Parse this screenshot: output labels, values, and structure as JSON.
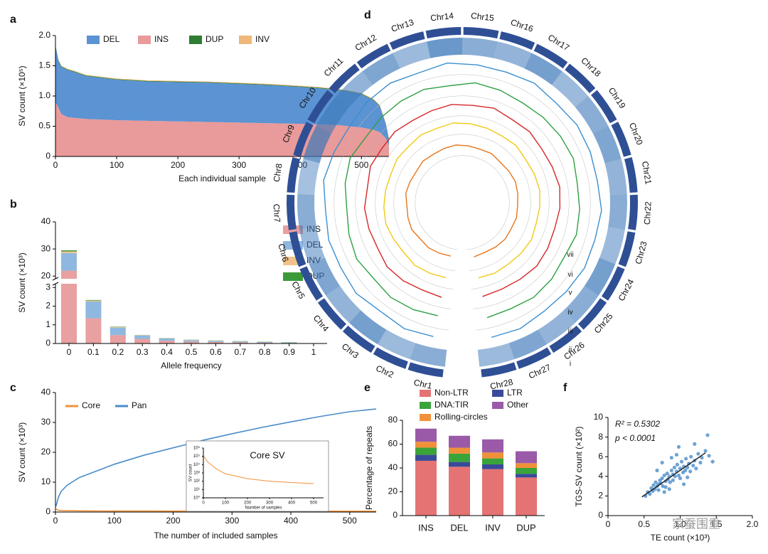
{
  "chart_data": [
    {
      "type": "area",
      "panel_label": "a",
      "y_label": "SV count (×10⁵)",
      "x_label": "Each individual sample",
      "x": [
        0,
        5,
        10,
        20,
        30,
        50,
        100,
        150,
        200,
        250,
        300,
        350,
        400,
        430,
        460,
        480,
        500,
        520,
        530,
        540,
        545
      ],
      "series": [
        {
          "name": "DEL",
          "color": "#5b93d3",
          "values": [
            0.93,
            0.78,
            0.78,
            0.78,
            0.76,
            0.71,
            0.67,
            0.65,
            0.65,
            0.65,
            0.64,
            0.63,
            0.61,
            0.6,
            0.58,
            0.57,
            0.55,
            0.49,
            0.43,
            0.23,
            0.11
          ]
        },
        {
          "name": "INS",
          "color": "#e99a9a",
          "values": [
            0.9,
            0.8,
            0.7,
            0.65,
            0.64,
            0.62,
            0.6,
            0.59,
            0.58,
            0.57,
            0.56,
            0.55,
            0.54,
            0.53,
            0.52,
            0.5,
            0.48,
            0.44,
            0.4,
            0.3,
            0.17
          ]
        },
        {
          "name": "DUP",
          "color": "#2e7d32",
          "values": [
            0.01,
            0.01,
            0.01,
            0.01,
            0.01,
            0.01,
            0.01,
            0.01,
            0.01,
            0.01,
            0.01,
            0.01,
            0.01,
            0.01,
            0.01,
            0.01,
            0.01,
            0.01,
            0.01,
            0.01,
            0.01
          ]
        },
        {
          "name": "INV",
          "color": "#f0b878",
          "values": [
            0.01,
            0.01,
            0.01,
            0.01,
            0.01,
            0.01,
            0.01,
            0.01,
            0.01,
            0.01,
            0.01,
            0.01,
            0.01,
            0.01,
            0.01,
            0.01,
            0.01,
            0.01,
            0.01,
            0.01,
            0.01
          ]
        }
      ],
      "stack_order": [
        1,
        0,
        2,
        3
      ],
      "xlim": [
        0,
        545
      ],
      "ylim": [
        0,
        2
      ],
      "xticks": [
        0,
        100,
        200,
        300,
        400,
        500
      ],
      "yticks": [
        0,
        0.5,
        {
          "value": 1,
          "label": "1.0"
        },
        1.5,
        {
          "value": 2,
          "label": "2.0"
        }
      ]
    },
    {
      "type": "bar",
      "panel_label": "b",
      "y_label": "SV count (×10³)",
      "x_label": "Allele frequency",
      "categories": [
        "0",
        "0.1",
        "0.2",
        "0.3",
        "0.4",
        "0.5",
        "0.6",
        "0.7",
        "0.8",
        "0.9",
        "1"
      ],
      "series": [
        {
          "name": "INS",
          "color": "#e8a0a0",
          "values": [
            22,
            1.35,
            0.45,
            0.25,
            0.15,
            0.1,
            0.08,
            0.06,
            0.04,
            0.02,
            0.01
          ]
        },
        {
          "name": "DEL",
          "color": "#8fb8e0",
          "values": [
            6.5,
            0.9,
            0.4,
            0.18,
            0.12,
            0.08,
            0.06,
            0.05,
            0.04,
            0.03,
            0.01
          ]
        },
        {
          "name": "INV",
          "color": "#f3c28a",
          "values": [
            0.6,
            0.05,
            0.03,
            0.02,
            0.01,
            0.01,
            0.01,
            0.01,
            0.01,
            0.01,
            0
          ]
        },
        {
          "name": "DUP",
          "color": "#3a9a3a",
          "values": [
            0.4,
            0.03,
            0.02,
            0.01,
            0.01,
            0.01,
            0.01,
            0.01,
            0.01,
            0.01,
            0
          ]
        }
      ],
      "ylim": [
        0,
        40
      ],
      "axis_break": [
        3.2,
        19
      ],
      "yticks": [
        0,
        1,
        2,
        3,
        20,
        30,
        40
      ]
    },
    {
      "type": "line",
      "panel_label": "c",
      "y_label": "SV count (×10³)",
      "x_label": "The number of included samples",
      "x": [
        1,
        5,
        10,
        20,
        40,
        60,
        80,
        100,
        150,
        200,
        250,
        300,
        350,
        400,
        450,
        500,
        545
      ],
      "series": [
        {
          "name": "Core",
          "color": "#f0913a",
          "values": [
            1,
            0.6,
            0.5,
            0.45,
            0.4,
            0.38,
            0.36,
            0.35,
            0.33,
            0.32,
            0.31,
            0.3,
            0.3,
            0.29,
            0.29,
            0.28,
            0.28
          ]
        },
        {
          "name": "Pan",
          "color": "#4a8cc9",
          "values": [
            2,
            5,
            7,
            9,
            11.5,
            13,
            14.5,
            16,
            19,
            21.5,
            24,
            26.2,
            28.3,
            30.2,
            32,
            33.6,
            34.5
          ]
        }
      ],
      "xlim": [
        0,
        545
      ],
      "ylim": [
        0,
        40
      ],
      "xticks": [
        0,
        100,
        200,
        300,
        400,
        500
      ],
      "yticks": [
        0,
        10,
        20,
        30,
        40
      ],
      "inset": {
        "title": "Core SV",
        "y_label": "SV count",
        "x_label": "Number of samples",
        "color": "#f0913a",
        "log_y": true,
        "x": [
          1,
          10,
          20,
          40,
          60,
          80,
          100,
          150,
          200,
          300,
          400,
          500
        ],
        "values": [
          100000,
          50000,
          20000,
          8000,
          3000,
          1500,
          800,
          400,
          200,
          100,
          70,
          50
        ],
        "xlim": [
          0,
          545
        ],
        "ylim": [
          1,
          1000000
        ],
        "xticks": [
          0,
          100,
          200,
          300,
          400,
          500
        ],
        "yticks": [
          {
            "value": 1,
            "label": "10⁰"
          },
          {
            "value": 10,
            "label": "10¹"
          },
          {
            "value": 100,
            "label": "10²"
          },
          {
            "value": 1000,
            "label": "10³"
          },
          {
            "value": 10000,
            "label": "10⁴"
          },
          {
            "value": 100000,
            "label": "10⁵"
          },
          {
            "value": 1000000,
            "label": "10⁶"
          }
        ]
      }
    },
    {
      "type": "circos",
      "panel_label": "d",
      "chromosomes": [
        "Chr1",
        "Chr2",
        "Chr3",
        "Chr4",
        "Chr5",
        "Chr6",
        "Chr7",
        "Chr8",
        "Chr9",
        "Chr10",
        "Chr11",
        "Chr12",
        "Chr13",
        "Chr14",
        "Chr15",
        "Chr16",
        "Chr17",
        "Chr18",
        "Chr19",
        "Chr20",
        "Chr21",
        "Chr22",
        "Chr23",
        "Chr24",
        "Chr25",
        "Chr26",
        "Chr27",
        "Chr28"
      ],
      "tracks": [
        {
          "label": "i",
          "color": "#2f4f95"
        },
        {
          "label": "ii",
          "color": "#3a76b8",
          "values": [
            0.6,
            0.5,
            0.7,
            0.55,
            0.65,
            0.5,
            0.6,
            0.45,
            0.7,
            0.6,
            0.55,
            0.65,
            0.5,
            0.75,
            0.6,
            0.55,
            0.7,
            0.5,
            0.6,
            0.65,
            0.55,
            0.6,
            0.5,
            0.7,
            0.6,
            0.55,
            0.65,
            0.5
          ]
        },
        {
          "label": "iii",
          "color": "#3b8fcf",
          "values": [
            0.5,
            0.6,
            0.45,
            0.65,
            0.55,
            0.6,
            0.5,
            0.7,
            0.55,
            0.45,
            0.6,
            0.65,
            0.5,
            0.7,
            0.6,
            0.55,
            0.65,
            0.5,
            0.6,
            0.55,
            0.5,
            0.65,
            0.55,
            0.6,
            0.5,
            0.45,
            0.6,
            0.55
          ]
        },
        {
          "label": "iv",
          "color": "#2ea043",
          "values": [
            0.45,
            0.55,
            0.6,
            0.5,
            0.65,
            0.55,
            0.45,
            0.6,
            0.7,
            0.5,
            0.55,
            0.6,
            0.65,
            0.55,
            0.7,
            0.6,
            0.5,
            0.55,
            0.6,
            0.65,
            0.5,
            0.55,
            0.6,
            0.45,
            0.55,
            0.6,
            0.5,
            0.55
          ]
        },
        {
          "label": "v",
          "color": "#d62728",
          "values": [
            0.55,
            0.5,
            0.6,
            0.65,
            0.5,
            0.55,
            0.6,
            0.5,
            0.65,
            0.55,
            0.6,
            0.5,
            0.55,
            0.65,
            0.6,
            0.7,
            0.55,
            0.6,
            0.5,
            0.55,
            0.65,
            0.6,
            0.5,
            0.55,
            0.6,
            0.5,
            0.45,
            0.5
          ]
        },
        {
          "label": "vi",
          "color": "#f2c811",
          "values": [
            0.5,
            0.55,
            0.6,
            0.5,
            0.55,
            0.65,
            0.6,
            0.55,
            0.5,
            0.6,
            0.55,
            0.65,
            0.6,
            0.7,
            0.65,
            0.6,
            0.55,
            0.6,
            0.5,
            0.55,
            0.6,
            0.55,
            0.5,
            0.6,
            0.55,
            0.5,
            0.55,
            0.5
          ]
        },
        {
          "label": "vii",
          "color": "#e8751a",
          "values": [
            0.45,
            0.5,
            0.55,
            0.5,
            0.6,
            0.55,
            0.5,
            0.6,
            0.55,
            0.5,
            0.6,
            0.55,
            0.6,
            0.65,
            0.6,
            0.55,
            0.6,
            0.5,
            0.55,
            0.6,
            0.55,
            0.5,
            0.55,
            0.5,
            0.55,
            0.5,
            0.45,
            0.5
          ]
        }
      ]
    },
    {
      "type": "bar",
      "panel_label": "e",
      "y_label": "Percentage of repeats",
      "categories": [
        "INS",
        "DEL",
        "INV",
        "DUP"
      ],
      "series": [
        {
          "name": "Non-LTR",
          "color": "#e57373",
          "values": [
            46,
            41,
            39,
            32
          ]
        },
        {
          "name": "LTR",
          "color": "#3a4a9a",
          "values": [
            5,
            4,
            4,
            3
          ]
        },
        {
          "name": "DNA:TIR",
          "color": "#3aa33a",
          "values": [
            6,
            7,
            5,
            5
          ]
        },
        {
          "name": "Rolling-circles",
          "color": "#f0913a",
          "values": [
            5,
            5,
            5,
            4
          ]
        },
        {
          "name": "Other",
          "color": "#9a5aa8",
          "values": [
            11,
            10,
            11,
            10
          ]
        }
      ],
      "ylim": [
        0,
        80
      ],
      "yticks": [
        0,
        20,
        40,
        60,
        80
      ]
    },
    {
      "type": "scatter",
      "panel_label": "f",
      "y_label": "TGS-SV count (×10²)",
      "x_label": "TE count (×10³)",
      "annotations": [
        "R² = 0.5302",
        "p < 0.0001"
      ],
      "watermark": "家蚕围重",
      "color": "#4a8cc9",
      "x": [
        0.52,
        0.55,
        0.58,
        0.6,
        0.62,
        0.63,
        0.65,
        0.66,
        0.68,
        0.7,
        0.7,
        0.72,
        0.73,
        0.75,
        0.76,
        0.78,
        0.8,
        0.8,
        0.82,
        0.83,
        0.85,
        0.86,
        0.88,
        0.9,
        0.9,
        0.92,
        0.93,
        0.95,
        0.96,
        0.98,
        1.0,
        1.0,
        1.02,
        1.04,
        1.05,
        1.07,
        1.08,
        1.1,
        1.12,
        1.14,
        1.15,
        1.18,
        1.2,
        1.22,
        1.25,
        1.28,
        1.3,
        1.35,
        1.4,
        1.45,
        0.75,
        0.85,
        0.95,
        1.05,
        0.68,
        0.88,
        1.1,
        0.98,
        0.78,
        1.2,
        1.38
      ],
      "values": [
        2.0,
        2.4,
        2.2,
        2.8,
        2.5,
        3.1,
        2.7,
        3.4,
        3.0,
        3.2,
        2.6,
        3.6,
        3.3,
        3.8,
        3.0,
        4.1,
        3.5,
        2.9,
        4.3,
        3.7,
        4.0,
        3.4,
        4.6,
        4.2,
        3.6,
        4.9,
        4.0,
        4.5,
        5.2,
        4.1,
        4.8,
        3.8,
        5.5,
        4.4,
        5.0,
        4.6,
        5.8,
        4.9,
        5.3,
        4.5,
        6.0,
        5.1,
        5.6,
        4.8,
        6.3,
        5.4,
        5.9,
        6.6,
        6.1,
        5.5,
        5.4,
        2.7,
        6.2,
        3.2,
        4.6,
        5.9,
        3.9,
        7.0,
        2.4,
        7.3,
        8.2
      ],
      "fit": {
        "x": [
          0.47,
          1.35
        ],
        "y": [
          1.9,
          6.4
        ]
      },
      "xlim": [
        0,
        2
      ],
      "ylim": [
        0,
        10
      ],
      "xticks": [
        0,
        0.5,
        {
          "value": 1,
          "label": "1.0"
        },
        1.5,
        {
          "value": 2,
          "label": "2.0"
        }
      ],
      "yticks": [
        0,
        2,
        4,
        6,
        8,
        10
      ]
    }
  ]
}
